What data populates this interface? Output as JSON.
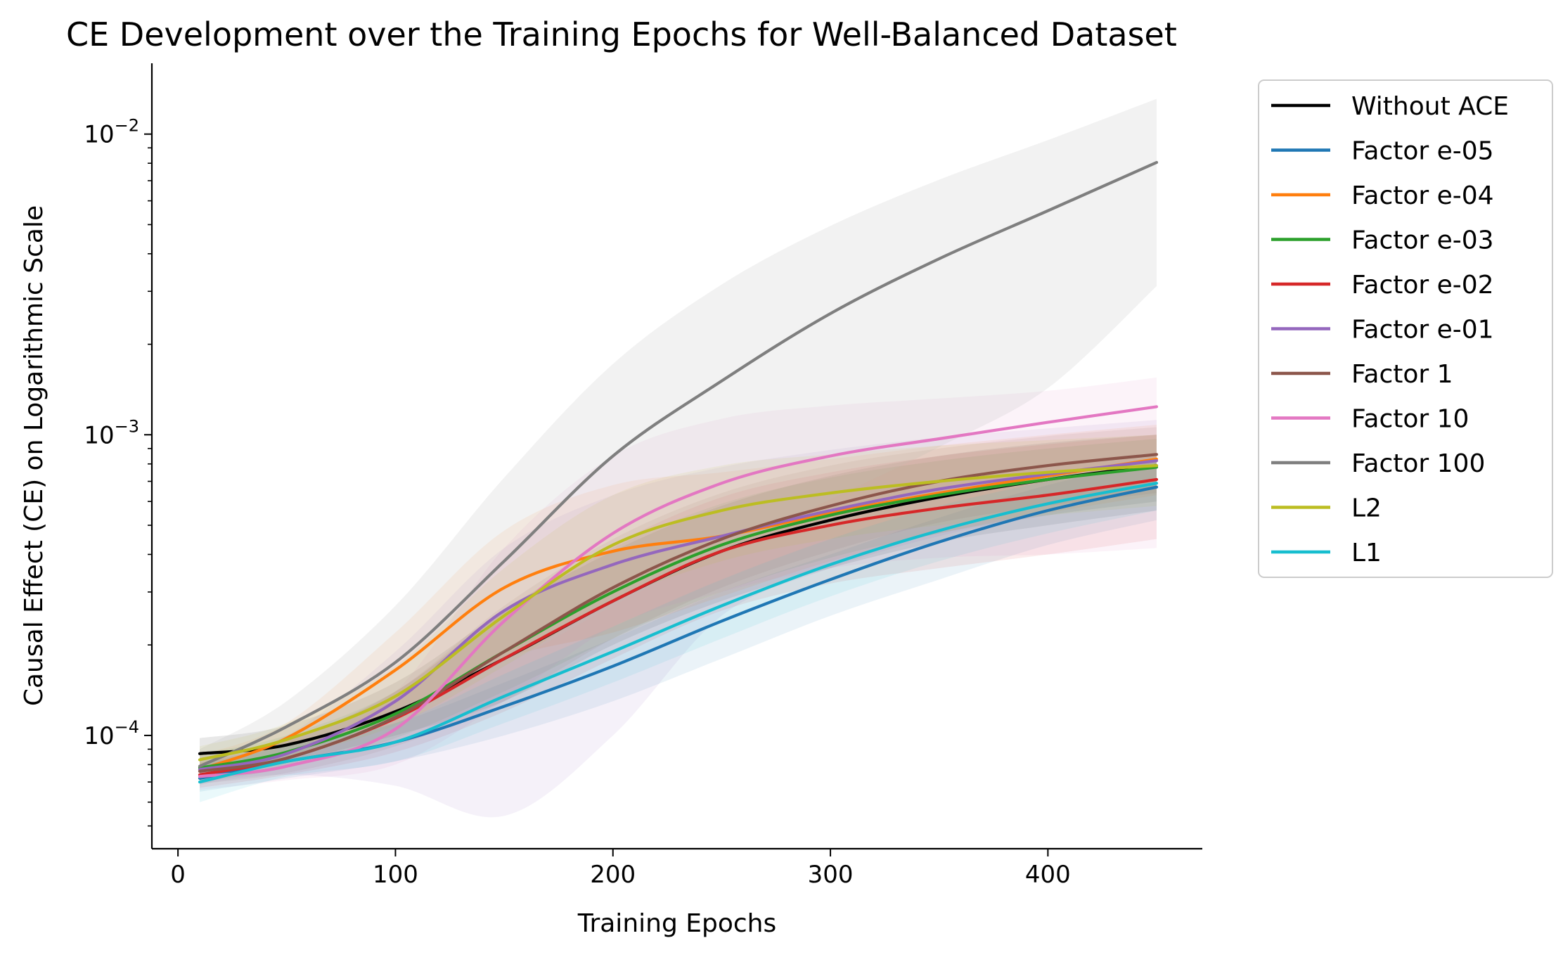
{
  "chart_data": {
    "type": "line",
    "title": "CE Development over the Training Epochs for Well-Balanced Dataset",
    "xlabel": "Training Epochs",
    "ylabel": "Causal Effect (CE) on Logarithmic Scale",
    "xlim": [
      -12,
      471
    ],
    "ylim": [
      4.2e-05,
      0.0172
    ],
    "yscale": "log",
    "xticks": [
      0,
      100,
      200,
      300,
      400
    ],
    "yticks": [
      {
        "value": 0.0001,
        "base": "10",
        "exp": "−4"
      },
      {
        "value": 0.001,
        "base": "10",
        "exp": "−3"
      },
      {
        "value": 0.01,
        "base": "10",
        "exp": "−2"
      }
    ],
    "grid": false,
    "legend_position": "outside-right",
    "x": [
      10,
      50,
      100,
      150,
      200,
      250,
      300,
      350,
      400,
      450
    ],
    "series": [
      {
        "name": "Without ACE",
        "color": "#000000",
        "values": [
          8.7e-05,
          9.3e-05,
          0.00012,
          0.00018,
          0.00028,
          0.00041,
          0.00052,
          0.00062,
          0.00071,
          0.00079
        ],
        "lower": [
          7.8e-05,
          8.2e-05,
          0.0001,
          0.00013,
          0.0002,
          0.00028,
          0.00036,
          0.00044,
          0.0005,
          0.00056
        ],
        "upper": [
          9.8e-05,
          0.000108,
          0.00015,
          0.00026,
          0.00041,
          0.00058,
          0.00073,
          0.00085,
          0.00094,
          0.001
        ]
      },
      {
        "name": "Factor e-05",
        "color": "#1f77b4",
        "values": [
          7.2e-05,
          8.2e-05,
          9.5e-05,
          0.000125,
          0.00017,
          0.00024,
          0.00033,
          0.00044,
          0.00056,
          0.00067
        ],
        "lower": [
          6.5e-05,
          7.2e-05,
          8.2e-05,
          0.0001,
          0.00013,
          0.00018,
          0.00025,
          0.00033,
          0.00043,
          0.00052
        ],
        "upper": [
          8e-05,
          9.3e-05,
          0.00011,
          0.00015,
          0.00021,
          0.0003,
          0.0004,
          0.00053,
          0.00068,
          0.00082
        ]
      },
      {
        "name": "Factor e-04",
        "color": "#ff7f0e",
        "values": [
          7.7e-05,
          9.8e-05,
          0.000165,
          0.00031,
          0.00041,
          0.00046,
          0.00055,
          0.00064,
          0.00073,
          0.00083
        ],
        "lower": [
          7e-05,
          8.4e-05,
          0.00012,
          0.00018,
          0.00022,
          0.00029,
          0.00038,
          0.00047,
          0.00055,
          0.00063
        ],
        "upper": [
          8.6e-05,
          0.00011,
          0.00022,
          0.00048,
          0.00068,
          0.00075,
          0.00083,
          0.00092,
          0.001,
          0.00108
        ]
      },
      {
        "name": "Factor e-03",
        "color": "#2ca02c",
        "values": [
          7.8e-05,
          8.8e-05,
          0.000118,
          0.00019,
          0.0003,
          0.00043,
          0.00054,
          0.00063,
          0.00071,
          0.00078
        ],
        "lower": [
          7e-05,
          7.8e-05,
          9.8e-05,
          0.00014,
          0.00021,
          0.0003,
          0.00039,
          0.00047,
          0.00054,
          0.0006
        ],
        "upper": [
          8.7e-05,
          0.0001,
          0.00014,
          0.00026,
          0.00042,
          0.00059,
          0.00072,
          0.00082,
          0.0009,
          0.00097
        ]
      },
      {
        "name": "Factor e-02",
        "color": "#d62728",
        "values": [
          7.4e-05,
          8.4e-05,
          0.000114,
          0.00018,
          0.00028,
          0.00041,
          0.0005,
          0.00057,
          0.00063,
          0.00071
        ],
        "lower": [
          6.7e-05,
          7.4e-05,
          8.8e-05,
          0.00012,
          0.00018,
          0.00026,
          0.00032,
          0.00036,
          0.0004,
          0.00045
        ],
        "upper": [
          8.1e-05,
          9.6e-05,
          0.00014,
          0.00026,
          0.00043,
          0.00062,
          0.00075,
          0.00085,
          0.00093,
          0.001
        ]
      },
      {
        "name": "Factor e-01",
        "color": "#9467bd",
        "values": [
          7.7e-05,
          8.7e-05,
          0.00013,
          0.00026,
          0.00037,
          0.00046,
          0.00056,
          0.00066,
          0.00074,
          0.00082
        ],
        "lower": [
          6.9e-05,
          7.4e-05,
          6.8e-05,
          5.4e-05,
          0.0001,
          0.00025,
          0.00036,
          0.00046,
          0.00054,
          0.0006
        ],
        "upper": [
          8.5e-05,
          0.0001,
          0.00019,
          0.00042,
          0.00063,
          0.00078,
          0.00089,
          0.00098,
          0.00105,
          0.00112
        ]
      },
      {
        "name": "Factor 1",
        "color": "#8c564b",
        "values": [
          7.6e-05,
          8.4e-05,
          0.000115,
          0.00019,
          0.00031,
          0.00045,
          0.00058,
          0.0007,
          0.00079,
          0.00086
        ],
        "lower": [
          6.9e-05,
          7.5e-05,
          9.2e-05,
          0.00013,
          0.00021,
          0.00031,
          0.00041,
          0.00051,
          0.00058,
          0.00064
        ],
        "upper": [
          8.4e-05,
          9.6e-05,
          0.00014,
          0.00027,
          0.00045,
          0.00064,
          0.00079,
          0.0009,
          0.00099,
          0.00106
        ]
      },
      {
        "name": "Factor 10",
        "color": "#e377c2",
        "values": [
          7.3e-05,
          7.9e-05,
          0.000105,
          0.00024,
          0.00047,
          0.00069,
          0.00085,
          0.00097,
          0.0011,
          0.00124
        ],
        "lower": [
          6.6e-05,
          7.1e-05,
          8e-05,
          0.00013,
          0.00023,
          0.0003,
          0.00036,
          0.00039,
          0.0004,
          0.00042
        ],
        "upper": [
          8e-05,
          8.9e-05,
          0.00014,
          0.00042,
          0.00085,
          0.00113,
          0.00125,
          0.00132,
          0.0014,
          0.00155
        ]
      },
      {
        "name": "Factor 100",
        "color": "#7f7f7f",
        "values": [
          7.9e-05,
          0.000107,
          0.000175,
          0.00038,
          0.00085,
          0.00151,
          0.00253,
          0.00385,
          0.00556,
          0.00805
        ],
        "lower": [
          6.8e-05,
          8.5e-05,
          0.000113,
          0.00017,
          0.00027,
          0.00041,
          0.00061,
          0.00091,
          0.00143,
          0.00312
        ],
        "upper": [
          9e-05,
          0.00013,
          0.00027,
          0.00072,
          0.00172,
          0.00316,
          0.00495,
          0.00705,
          0.00955,
          0.0131
        ]
      },
      {
        "name": "L2",
        "color": "#bcbd22",
        "values": [
          8.3e-05,
          9.7e-05,
          0.000135,
          0.00025,
          0.00043,
          0.00056,
          0.00064,
          0.0007,
          0.00075,
          0.00079
        ],
        "lower": [
          7.5e-05,
          8.5e-05,
          0.000108,
          0.00017,
          0.00028,
          0.00038,
          0.00045,
          0.0005,
          0.00054,
          0.00058
        ],
        "upper": [
          9.2e-05,
          0.00011,
          0.00017,
          0.00036,
          0.00063,
          0.00079,
          0.00086,
          0.00092,
          0.00096,
          0.001
        ]
      },
      {
        "name": "L1",
        "color": "#17becf",
        "values": [
          7e-05,
          8.2e-05,
          9.5e-05,
          0.000135,
          0.00019,
          0.00027,
          0.00037,
          0.00048,
          0.00059,
          0.00069
        ],
        "lower": [
          6e-05,
          7.3e-05,
          8.2e-05,
          0.00011,
          0.00015,
          0.00021,
          0.00029,
          0.00038,
          0.00047,
          0.00056
        ],
        "upper": [
          7.9e-05,
          9.2e-05,
          0.00011,
          0.00016,
          0.00023,
          0.00033,
          0.00045,
          0.00058,
          0.0007,
          0.00081
        ]
      }
    ]
  }
}
